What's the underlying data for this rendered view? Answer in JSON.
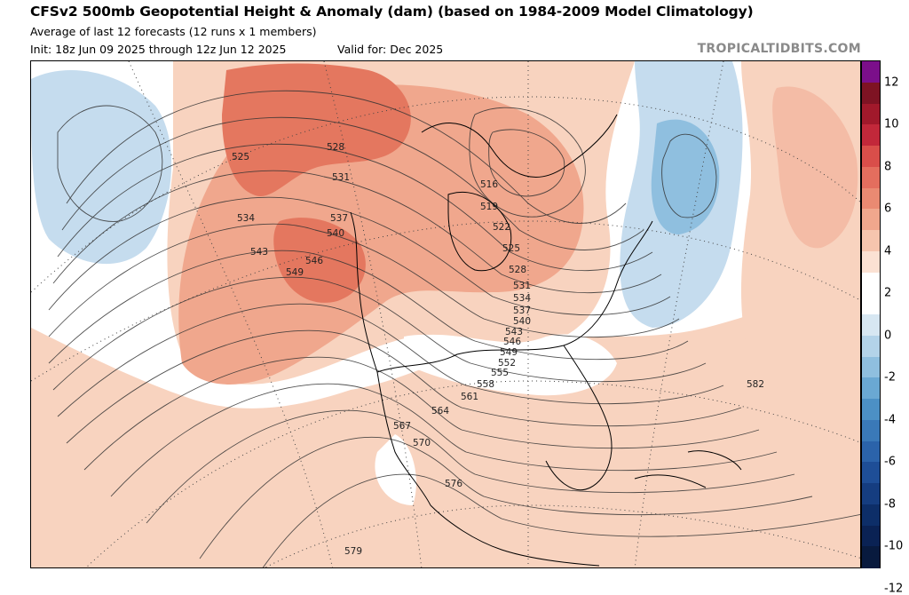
{
  "header": {
    "title": "CFSv2 500mb Geopotential Height & Anomaly (dam) (based on 1984-2009 Model Climatology)",
    "subtitle": "Average of last 12 forecasts (12 runs x 1 members)",
    "init": "Init: 18z Jun 09 2025 through 12z Jun 12 2025",
    "valid": "Valid for: Dec 2025",
    "credit": "TROPICALTIDBITS.COM"
  },
  "colorbar": {
    "ticks": [
      "12",
      "10",
      "8",
      "6",
      "4",
      "2",
      "0",
      "-2",
      "-4",
      "-6",
      "-8",
      "-10",
      "-12"
    ],
    "colors": [
      "#7b0f8a",
      "#7e1323",
      "#a1192b",
      "#c2283a",
      "#d94e4a",
      "#e46e5e",
      "#ea8a72",
      "#f0a78d",
      "#f6c5ae",
      "#fbe1d3",
      "#ffffff",
      "#ffffff",
      "#d7e7f2",
      "#b3d3e9",
      "#8fbfdf",
      "#6aa8d3",
      "#4c90c5",
      "#3a79b8",
      "#2b63aa",
      "#1e4e97",
      "#153d80",
      "#0d2e68",
      "#0a2254",
      "#081a3e"
    ]
  },
  "contour_labels": [
    "525",
    "528",
    "531",
    "534",
    "537",
    "540",
    "543",
    "546",
    "549",
    "516",
    "519",
    "522",
    "525",
    "528",
    "531",
    "534",
    "537",
    "540",
    "543",
    "546",
    "549",
    "552",
    "555",
    "558",
    "561",
    "564",
    "567",
    "570",
    "576",
    "579",
    "582"
  ],
  "map": {
    "anomaly_regions": [
      {
        "sign": "positive",
        "level": "weak",
        "color": "#f8d3bf"
      },
      {
        "sign": "positive",
        "level": "moderate",
        "color": "#f0a78d"
      },
      {
        "sign": "positive",
        "level": "strong",
        "color": "#e4775f"
      },
      {
        "sign": "negative",
        "level": "weak",
        "color": "#c5dcee"
      },
      {
        "sign": "negative",
        "level": "moderate",
        "color": "#8fbfdf"
      }
    ]
  }
}
